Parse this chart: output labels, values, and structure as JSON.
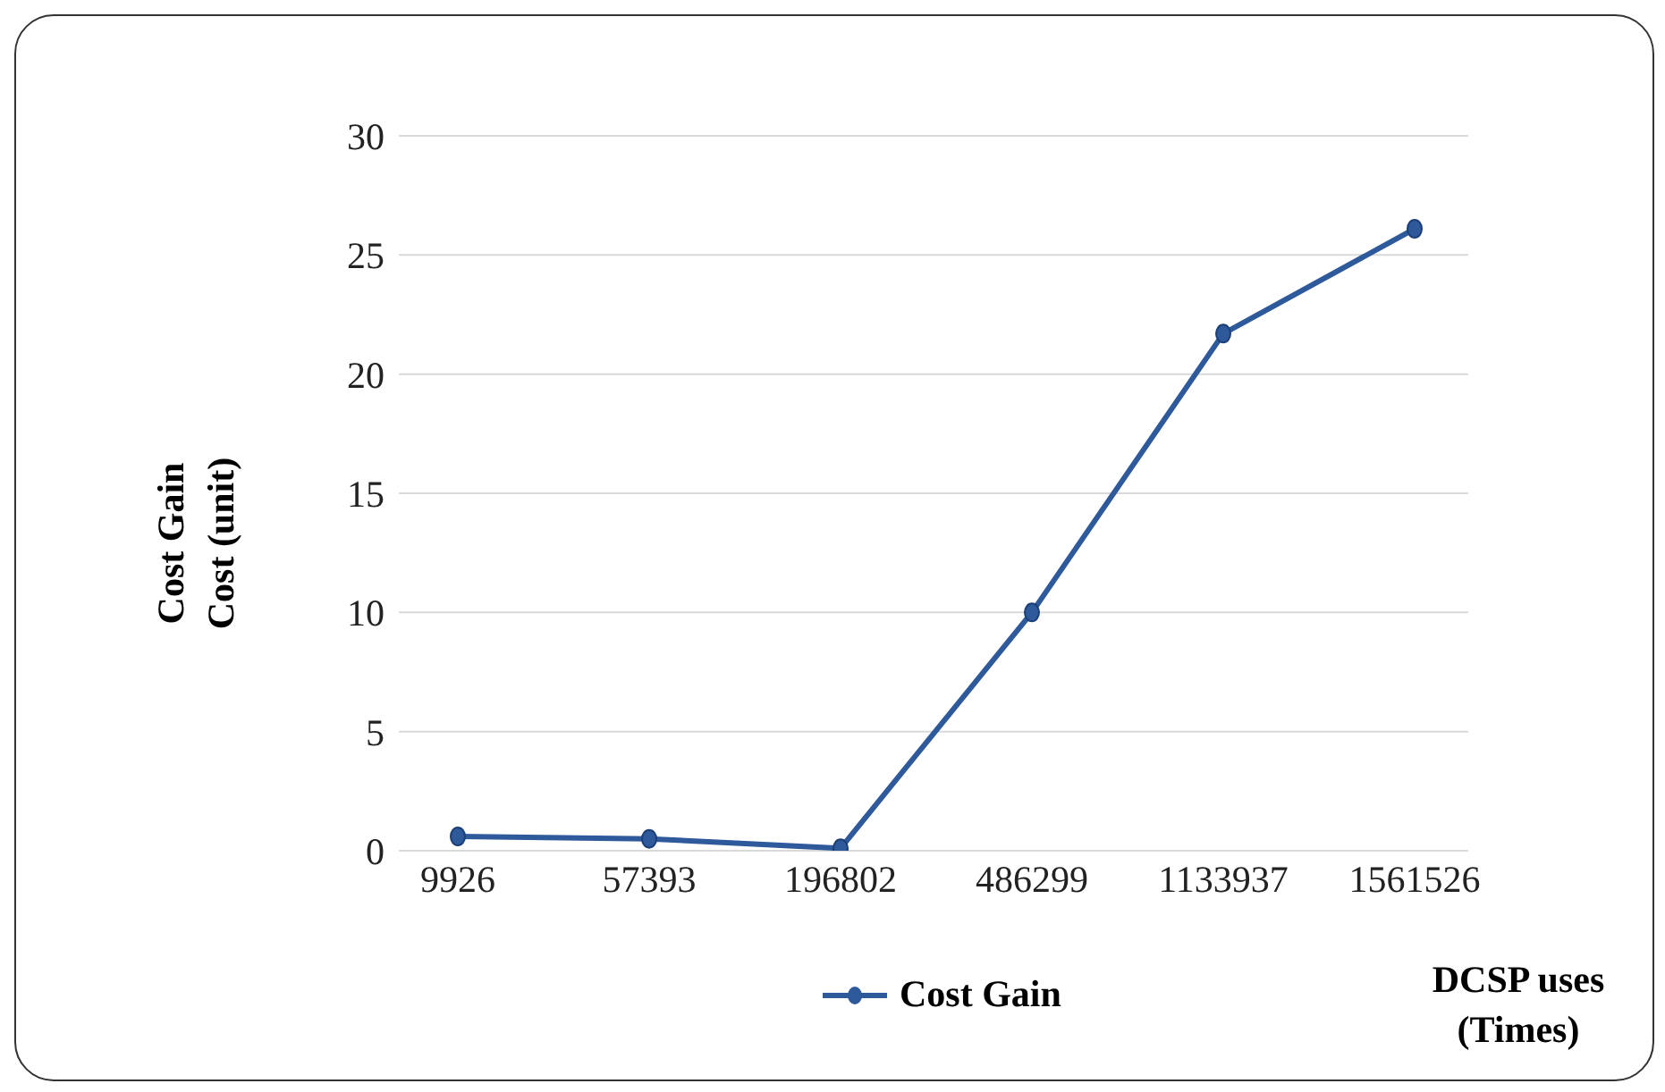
{
  "chart_data": {
    "type": "line",
    "xlabel": "DCSP uses (Times)",
    "ylabel": "Cost Gain Cost (unit)",
    "categories": [
      "9926",
      "57393",
      "196802",
      "486299",
      "1133937",
      "1561526"
    ],
    "series": [
      {
        "name": "Cost Gain",
        "color": "#2e5a9c",
        "values": [
          0.6,
          0.5,
          0.1,
          10,
          21.7,
          26.1
        ]
      }
    ],
    "ylim": [
      0,
      30
    ],
    "yticks": [
      0,
      5,
      10,
      15,
      20,
      25,
      30
    ],
    "grid": "y",
    "legend": "bottom",
    "marker": "circle",
    "line_style": "solid"
  }
}
